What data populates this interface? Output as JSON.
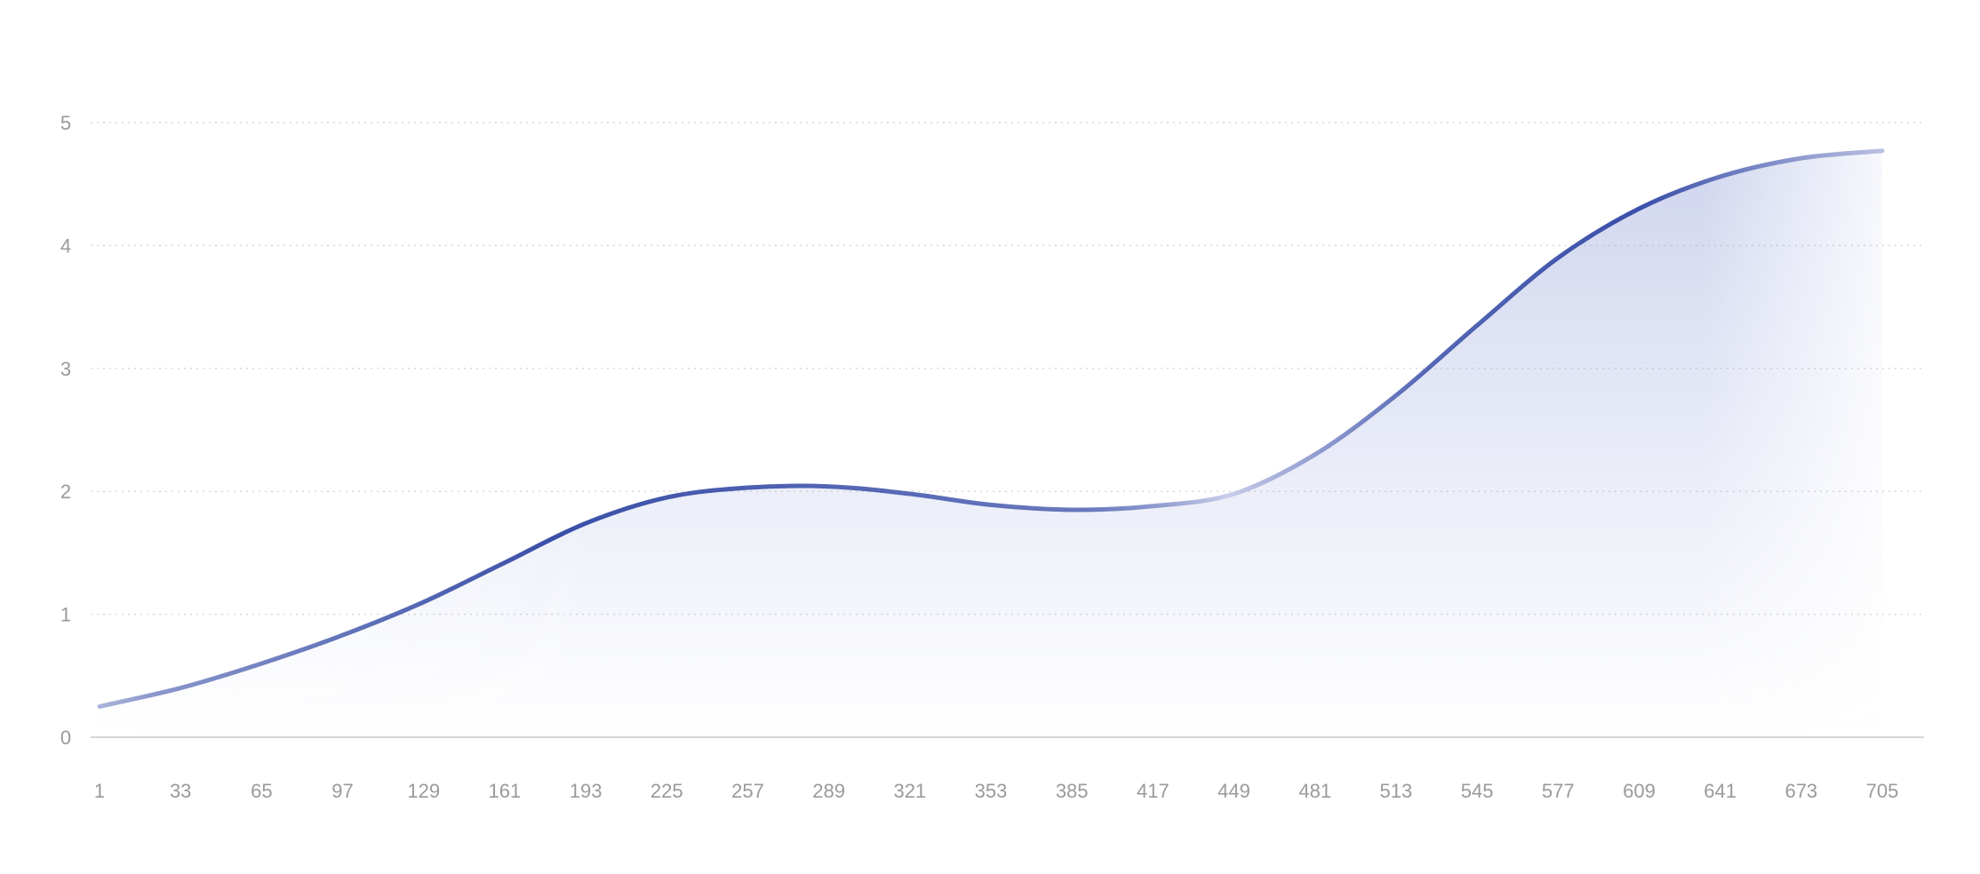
{
  "chart_data": {
    "type": "area",
    "title": "",
    "xlabel": "",
    "ylabel": "",
    "x_ticks": [
      "1",
      "33",
      "65",
      "97",
      "129",
      "161",
      "193",
      "225",
      "257",
      "289",
      "321",
      "353",
      "385",
      "417",
      "449",
      "481",
      "513",
      "545",
      "577",
      "609",
      "641",
      "673",
      "705"
    ],
    "y_ticks": [
      "0",
      "1",
      "2",
      "3",
      "4",
      "5"
    ],
    "xlim": [
      1,
      705
    ],
    "ylim": [
      0,
      5
    ],
    "grid": "horizontal-dotted",
    "legend": "none",
    "series": [
      {
        "x": [
          1,
          33,
          65,
          97,
          129,
          161,
          193,
          225,
          257,
          289,
          321,
          353,
          385,
          417,
          449,
          481,
          513,
          545,
          577,
          609,
          641,
          673,
          705
        ],
        "y": [
          0.25,
          0.4,
          0.6,
          0.83,
          1.1,
          1.42,
          1.74,
          1.95,
          2.03,
          2.04,
          1.98,
          1.89,
          1.85,
          1.88,
          1.98,
          2.3,
          2.78,
          3.35,
          3.9,
          4.3,
          4.56,
          4.71,
          4.77
        ]
      }
    ],
    "colors": {
      "line": "#3a4fa8",
      "line_light": "#c6cbe8",
      "area": "#8d9bd8",
      "grid": "#d9d9d9",
      "axis": "#d6d6d6",
      "tick_text": "#9a9a9a"
    }
  }
}
